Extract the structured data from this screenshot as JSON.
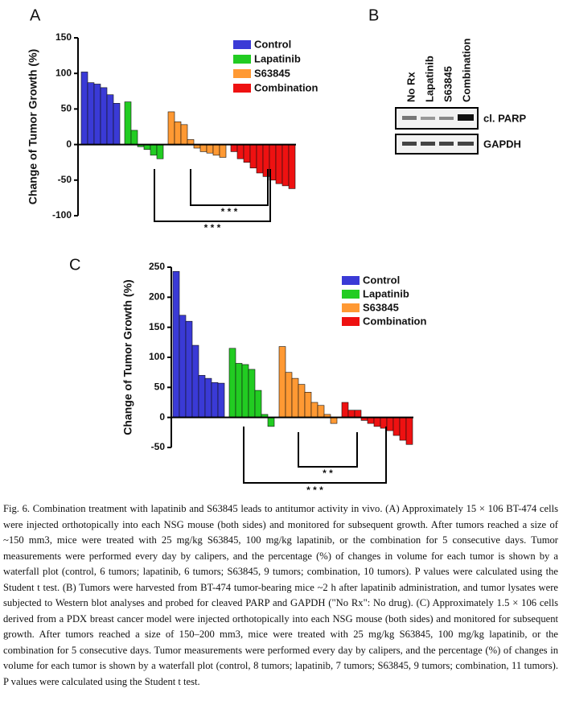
{
  "panels": {
    "a": "A",
    "b": "B",
    "c": "C"
  },
  "blot": {
    "columns": [
      "No Rx",
      "Lapatinib",
      "S63845",
      "Combination"
    ],
    "rows": [
      "cl. PARP",
      "GAPDH"
    ]
  },
  "caption": "Fig. 6. Combination treatment with lapatinib and S63845 leads to antitumor activity in vivo. (A) Approximately 15 × 106 BT-474 cells were injected orthotopically into each NSG mouse (both sides) and monitored for subsequent growth. After tumors reached a size of ~150 mm3, mice were treated with 25 mg/kg S63845, 100 mg/kg lapatinib, or the combination for 5 consecutive days. Tumor measurements were performed every day by calipers, and the percentage (%) of changes in volume for each tumor is shown by a waterfall plot (control, 6 tumors; lapatinib, 6 tumors; S63845, 9 tumors; combination, 10 tumors). P values were calculated using the Student t test. (B) Tumors were harvested from BT-474 tumor-bearing mice ~2 h after lapatinib administration, and tumor lysates were subjected to Western blot analyses and probed for cleaved PARP and GAPDH (\"No Rx\": No drug). (C) Approximately 1.5 × 106 cells derived from a PDX breast cancer model were injected orthotopically into each NSG mouse (both sides) and monitored for subsequent growth. After tumors reached a size of 150–200 mm3, mice were treated with 25 mg/kg S63845, 100 mg/kg lapatinib, or the combination for 5 consecutive days. Tumor measurements were performed every day by calipers, and the percentage (%) of changes in volume for each tumor is shown by a waterfall plot (control, 8 tumors; lapatinib, 7 tumors; S63845, 9 tumors; combination, 11 tumors). P values were calculated using the Student t test.",
  "chart_data": [
    {
      "type": "waterfall",
      "y_label": "Change of Tumor Growth (%)",
      "ylim": [
        -100,
        150
      ],
      "yticks": [
        -100,
        -50,
        0,
        50,
        100,
        150
      ],
      "series": [
        {
          "name": "Control",
          "color": "#3a3ad6",
          "values": [
            102,
            87,
            85,
            80,
            70,
            58
          ]
        },
        {
          "name": "Lapatinib",
          "color": "#22cc22",
          "values": [
            60,
            20,
            -3,
            -7,
            -15,
            -20
          ]
        },
        {
          "name": "S63845",
          "color": "#ff9933",
          "values": [
            46,
            32,
            28,
            7,
            -5,
            -10,
            -12,
            -15,
            -18
          ]
        },
        {
          "name": "Combination",
          "color": "#ee1111",
          "values": [
            -10,
            -20,
            -25,
            -33,
            -40,
            -45,
            -50,
            -55,
            -58,
            -62
          ]
        }
      ],
      "annotations": [
        "* * *",
        "* * *"
      ]
    },
    {
      "type": "waterfall",
      "y_label": "Change of Tumor Growth (%)",
      "ylim": [
        -50,
        250
      ],
      "yticks": [
        -50,
        0,
        50,
        100,
        150,
        200,
        250
      ],
      "series": [
        {
          "name": "Control",
          "color": "#3a3ad6",
          "values": [
            243,
            170,
            160,
            120,
            70,
            65,
            58,
            57
          ]
        },
        {
          "name": "Lapatinib",
          "color": "#22cc22",
          "values": [
            115,
            90,
            88,
            80,
            45,
            5,
            -15
          ]
        },
        {
          "name": "S63845",
          "color": "#ff9933",
          "values": [
            118,
            75,
            65,
            55,
            42,
            25,
            20,
            5,
            -10
          ]
        },
        {
          "name": "Combination",
          "color": "#ee1111",
          "values": [
            25,
            12,
            12,
            -5,
            -10,
            -15,
            -18,
            -22,
            -30,
            -38,
            -45
          ]
        }
      ],
      "annotations": [
        "* *",
        "* * *"
      ]
    }
  ]
}
